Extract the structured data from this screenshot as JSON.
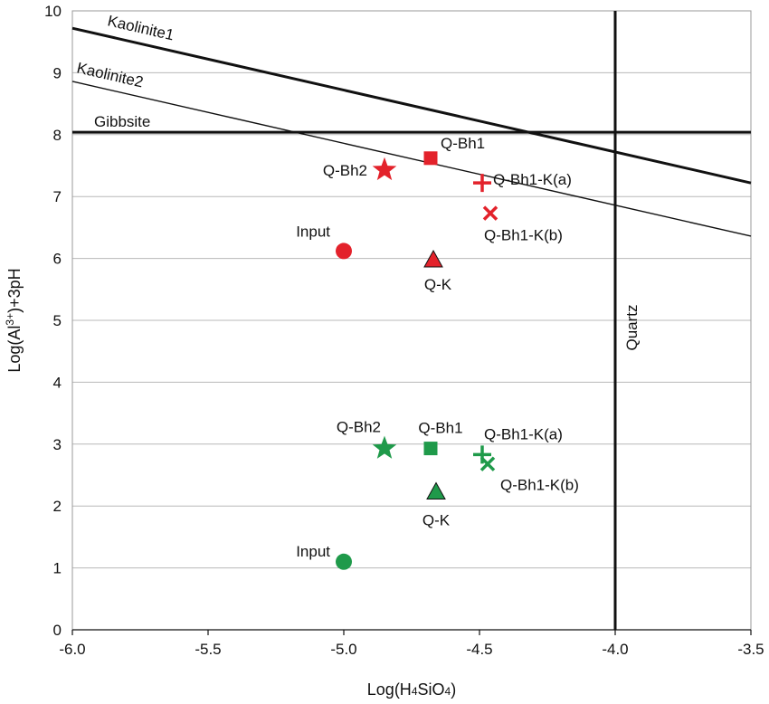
{
  "chart_data": {
    "type": "scatter",
    "xlabel": "Log(H4SiO4)",
    "ylabel": "Log(Al3+)+3pH",
    "xlim": [
      -6.0,
      -3.5
    ],
    "ylim": [
      0,
      10
    ],
    "x_ticks": [
      "-6.0",
      "-5.5",
      "-5.0",
      "-4.5",
      "-4.0",
      "-3.5"
    ],
    "x_tick_values": [
      -6.0,
      -5.5,
      -5.0,
      -4.5,
      -4.0,
      -3.5
    ],
    "y_ticks": [
      "0",
      "1",
      "2",
      "3",
      "4",
      "5",
      "6",
      "7",
      "8",
      "9",
      "10"
    ],
    "y_tick_values": [
      0,
      1,
      2,
      3,
      4,
      5,
      6,
      7,
      8,
      9,
      10
    ],
    "grid": "horizontal",
    "colors": {
      "red": "#e3222b",
      "green": "#1f9a4a",
      "line": "#111111",
      "grid": "#b8b8b8"
    },
    "reference_lines": [
      {
        "name": "Kaolinite1",
        "kind": "sloped",
        "x": [
          -6.0,
          -3.5
        ],
        "y": [
          9.72,
          7.22
        ],
        "weight": "thick"
      },
      {
        "name": "Kaolinite2",
        "kind": "sloped",
        "x": [
          -6.0,
          -3.5
        ],
        "y": [
          8.86,
          6.36
        ],
        "weight": "thin"
      },
      {
        "name": "Gibbsite",
        "kind": "horizontal",
        "y": 8.04,
        "weight": "thick"
      },
      {
        "name": "Quartz",
        "kind": "vertical",
        "x": -4.0,
        "weight": "thick"
      }
    ],
    "points": [
      {
        "label": "Q-Bh2",
        "x": -4.85,
        "y": 7.43,
        "marker": "star",
        "color": "red"
      },
      {
        "label": "Q-Bh1",
        "x": -4.68,
        "y": 7.62,
        "marker": "square",
        "color": "red"
      },
      {
        "label": "Q-Bh1-K(a)",
        "x": -4.49,
        "y": 7.22,
        "marker": "plus",
        "color": "red"
      },
      {
        "label": "Q-Bh1-K(b)",
        "x": -4.46,
        "y": 6.73,
        "marker": "x",
        "color": "red"
      },
      {
        "label": "Input",
        "x": -5.0,
        "y": 6.12,
        "marker": "circle",
        "color": "red"
      },
      {
        "label": "Q-K",
        "x": -4.67,
        "y": 5.98,
        "marker": "triangle",
        "color": "red"
      },
      {
        "label": "Q-Bh2",
        "x": -4.85,
        "y": 2.93,
        "marker": "star",
        "color": "green"
      },
      {
        "label": "Q-Bh1",
        "x": -4.68,
        "y": 2.93,
        "marker": "square",
        "color": "green"
      },
      {
        "label": "Q-Bh1-K(a)",
        "x": -4.49,
        "y": 2.83,
        "marker": "plus",
        "color": "green"
      },
      {
        "label": "Q-Bh1-K(b)",
        "x": -4.47,
        "y": 2.68,
        "marker": "x",
        "color": "green"
      },
      {
        "label": "Q-K",
        "x": -4.66,
        "y": 2.23,
        "marker": "triangle",
        "color": "green"
      },
      {
        "label": "Input",
        "x": -5.0,
        "y": 1.1,
        "marker": "circle",
        "color": "green"
      }
    ]
  }
}
